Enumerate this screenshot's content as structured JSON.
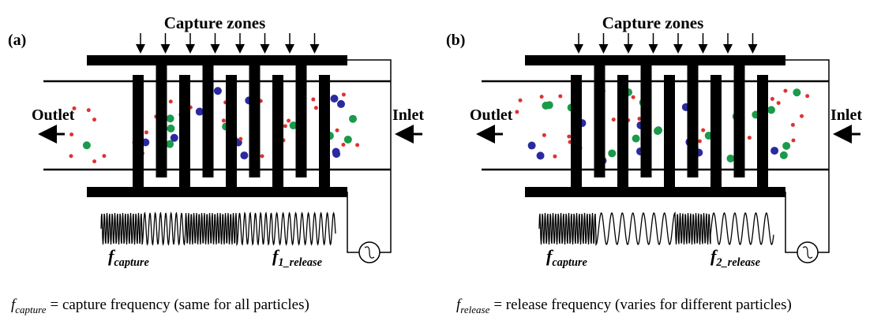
{
  "panels": [
    {
      "label": "(a)",
      "zones_label": "Capture zones",
      "outlet": "Outlet",
      "inlet": "Inlet",
      "capture_symbol": {
        "symbol": "f",
        "subscript": "capture"
      },
      "release_symbol": {
        "symbol": "f",
        "subscript": "1_release"
      },
      "caption": {
        "symbol": "f",
        "subscript": "capture",
        "text": "= capture frequency (same for all particles)"
      }
    },
    {
      "label": "(b)",
      "zones_label": "Capture zones",
      "outlet": "Outlet",
      "inlet": "Inlet",
      "capture_symbol": {
        "symbol": "f",
        "subscript": "capture"
      },
      "release_symbol": {
        "symbol": "f",
        "subscript": "2_release"
      },
      "caption": {
        "symbol": "f",
        "subscript": "release",
        "text": "= release frequency (varies for different particles)"
      }
    }
  ]
}
